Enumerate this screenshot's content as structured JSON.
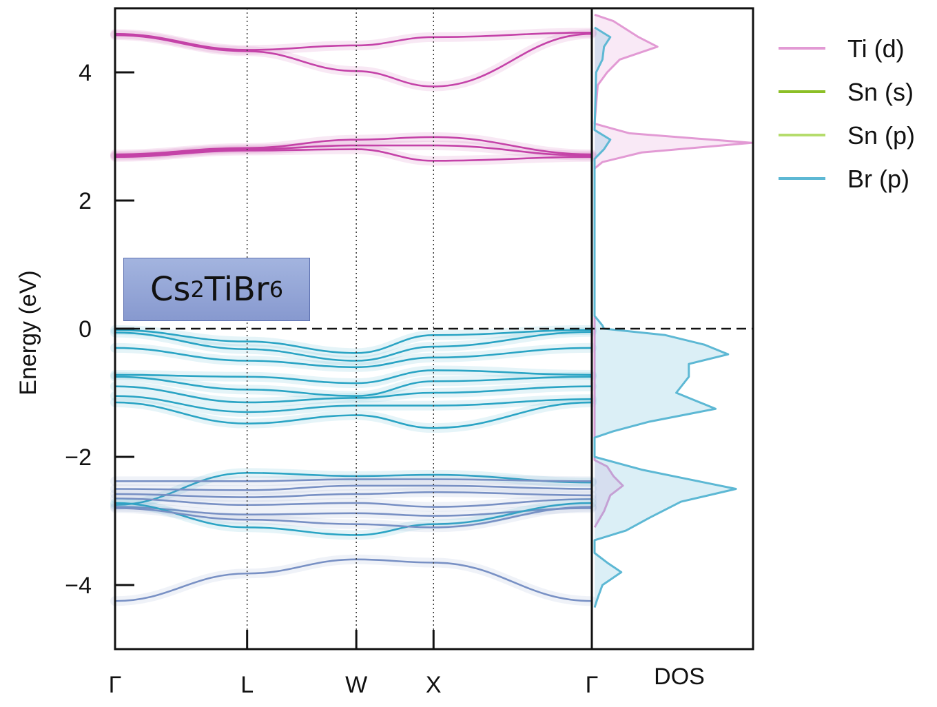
{
  "chart_data": {
    "type": "line",
    "subtype": "band-structure-with-dos",
    "material": {
      "parts": [
        "Cs",
        "2",
        "TiBr",
        "6"
      ]
    },
    "ylabel": "Energy (eV)",
    "ylim": [
      -5,
      5
    ],
    "yticks": [
      4,
      2,
      0,
      -2,
      -4
    ],
    "ytick_labels": [
      "4",
      "2",
      "0",
      "−2",
      "−4"
    ],
    "kpoints": [
      "Γ",
      "L",
      "W",
      "X",
      "Γ"
    ],
    "kpoint_positions": [
      0,
      0.277,
      0.506,
      0.668,
      1.0
    ],
    "dos_label": "DOS",
    "fermi_level": 0,
    "legend": [
      {
        "label": "Ti (d)",
        "color": "#e29ad4"
      },
      {
        "label": "Sn (s)",
        "color": "#8cbf26"
      },
      {
        "label": "Sn (p)",
        "color": "#b5dc6c"
      },
      {
        "label": "Br (p)",
        "color": "#5db8d4"
      }
    ],
    "band_colors": {
      "ti_d": "#c442a8",
      "br_p": "#2aa4c4",
      "mixed": "#7890c4"
    },
    "bands": [
      {
        "group": "ti_d",
        "values": [
          4.6,
          4.35,
          4.42,
          4.55,
          4.62
        ]
      },
      {
        "group": "ti_d",
        "values": [
          4.58,
          4.33,
          4.02,
          3.78,
          4.6
        ]
      },
      {
        "group": "ti_d",
        "values": [
          2.72,
          2.82,
          2.95,
          2.99,
          2.72
        ]
      },
      {
        "group": "ti_d",
        "values": [
          2.7,
          2.8,
          2.86,
          2.86,
          2.7
        ]
      },
      {
        "group": "ti_d",
        "values": [
          2.68,
          2.78,
          2.8,
          2.62,
          2.68
        ]
      },
      {
        "group": "br_p",
        "values": [
          -0.02,
          -0.2,
          -0.38,
          -0.1,
          -0.02
        ]
      },
      {
        "group": "br_p",
        "values": [
          -0.06,
          -0.32,
          -0.5,
          -0.28,
          -0.05
        ]
      },
      {
        "group": "br_p",
        "values": [
          -0.3,
          -0.5,
          -0.6,
          -0.45,
          -0.3
        ]
      },
      {
        "group": "br_p",
        "values": [
          -0.72,
          -0.75,
          -0.85,
          -0.65,
          -0.72
        ]
      },
      {
        "group": "br_p",
        "values": [
          -0.75,
          -0.95,
          -1.05,
          -0.82,
          -0.75
        ]
      },
      {
        "group": "br_p",
        "values": [
          -0.9,
          -1.15,
          -1.08,
          -1.0,
          -0.9
        ]
      },
      {
        "group": "br_p",
        "values": [
          -1.05,
          -1.3,
          -1.2,
          -1.2,
          -1.1
        ]
      },
      {
        "group": "br_p",
        "values": [
          -1.15,
          -1.48,
          -1.35,
          -1.55,
          -1.15
        ]
      },
      {
        "group": "br_p",
        "values": [
          -2.75,
          -2.25,
          -2.3,
          -2.28,
          -2.4
        ]
      },
      {
        "group": "mixed",
        "values": [
          -2.38,
          -2.38,
          -2.35,
          -2.35,
          -2.38
        ]
      },
      {
        "group": "mixed",
        "values": [
          -2.5,
          -2.52,
          -2.45,
          -2.45,
          -2.5
        ]
      },
      {
        "group": "mixed",
        "values": [
          -2.58,
          -2.63,
          -2.58,
          -2.55,
          -2.6
        ]
      },
      {
        "group": "mixed",
        "values": [
          -2.65,
          -2.75,
          -2.72,
          -2.78,
          -2.66
        ]
      },
      {
        "group": "mixed",
        "values": [
          -2.78,
          -2.9,
          -2.88,
          -2.92,
          -2.8
        ]
      },
      {
        "group": "br_p",
        "values": [
          -2.72,
          -3.1,
          -3.22,
          -3.05,
          -2.72
        ]
      },
      {
        "group": "mixed",
        "values": [
          -2.8,
          -2.98,
          -3.05,
          -3.1,
          -2.78
        ]
      },
      {
        "group": "mixed",
        "values": [
          -4.25,
          -3.82,
          -3.6,
          -3.65,
          -4.25
        ]
      }
    ],
    "dos": [
      {
        "label": "Ti (d)",
        "points": [
          [
            4.9,
            0.0
          ],
          [
            4.8,
            0.12
          ],
          [
            4.55,
            0.28
          ],
          [
            4.4,
            0.4
          ],
          [
            4.2,
            0.16
          ],
          [
            4.0,
            0.08
          ],
          [
            3.8,
            0.02
          ],
          [
            3.2,
            0.0
          ],
          [
            3.05,
            0.22
          ],
          [
            2.9,
            1.0
          ],
          [
            2.75,
            0.3
          ],
          [
            2.6,
            0.05
          ],
          [
            2.5,
            0.0
          ],
          [
            -2.05,
            0.0
          ],
          [
            -2.15,
            0.08
          ],
          [
            -2.3,
            0.12
          ],
          [
            -2.45,
            0.18
          ],
          [
            -2.6,
            0.1
          ],
          [
            -2.85,
            0.06
          ],
          [
            -3.1,
            0.0
          ]
        ]
      },
      {
        "label": "Br (p)",
        "points": [
          [
            4.7,
            0.0
          ],
          [
            4.55,
            0.1
          ],
          [
            4.4,
            0.06
          ],
          [
            4.2,
            0.05
          ],
          [
            4.0,
            0.01
          ],
          [
            3.1,
            0.0
          ],
          [
            2.95,
            0.1
          ],
          [
            2.8,
            0.06
          ],
          [
            2.65,
            0.0
          ],
          [
            0.2,
            0.0
          ],
          [
            0.05,
            0.05
          ],
          [
            0.0,
            0.06
          ],
          [
            -0.1,
            0.45
          ],
          [
            -0.25,
            0.7
          ],
          [
            -0.4,
            0.85
          ],
          [
            -0.55,
            0.6
          ],
          [
            -0.75,
            0.6
          ],
          [
            -1.0,
            0.52
          ],
          [
            -1.25,
            0.77
          ],
          [
            -1.45,
            0.35
          ],
          [
            -1.6,
            0.12
          ],
          [
            -1.7,
            0.0
          ],
          [
            -2.0,
            0.0
          ],
          [
            -2.2,
            0.3
          ],
          [
            -2.35,
            0.6
          ],
          [
            -2.5,
            0.9
          ],
          [
            -2.7,
            0.55
          ],
          [
            -2.95,
            0.35
          ],
          [
            -3.15,
            0.2
          ],
          [
            -3.3,
            0.0
          ],
          [
            -3.5,
            0.0
          ],
          [
            -3.65,
            0.08
          ],
          [
            -3.8,
            0.17
          ],
          [
            -4.0,
            0.05
          ],
          [
            -4.2,
            0.02
          ],
          [
            -4.35,
            0.0
          ]
        ]
      }
    ]
  }
}
